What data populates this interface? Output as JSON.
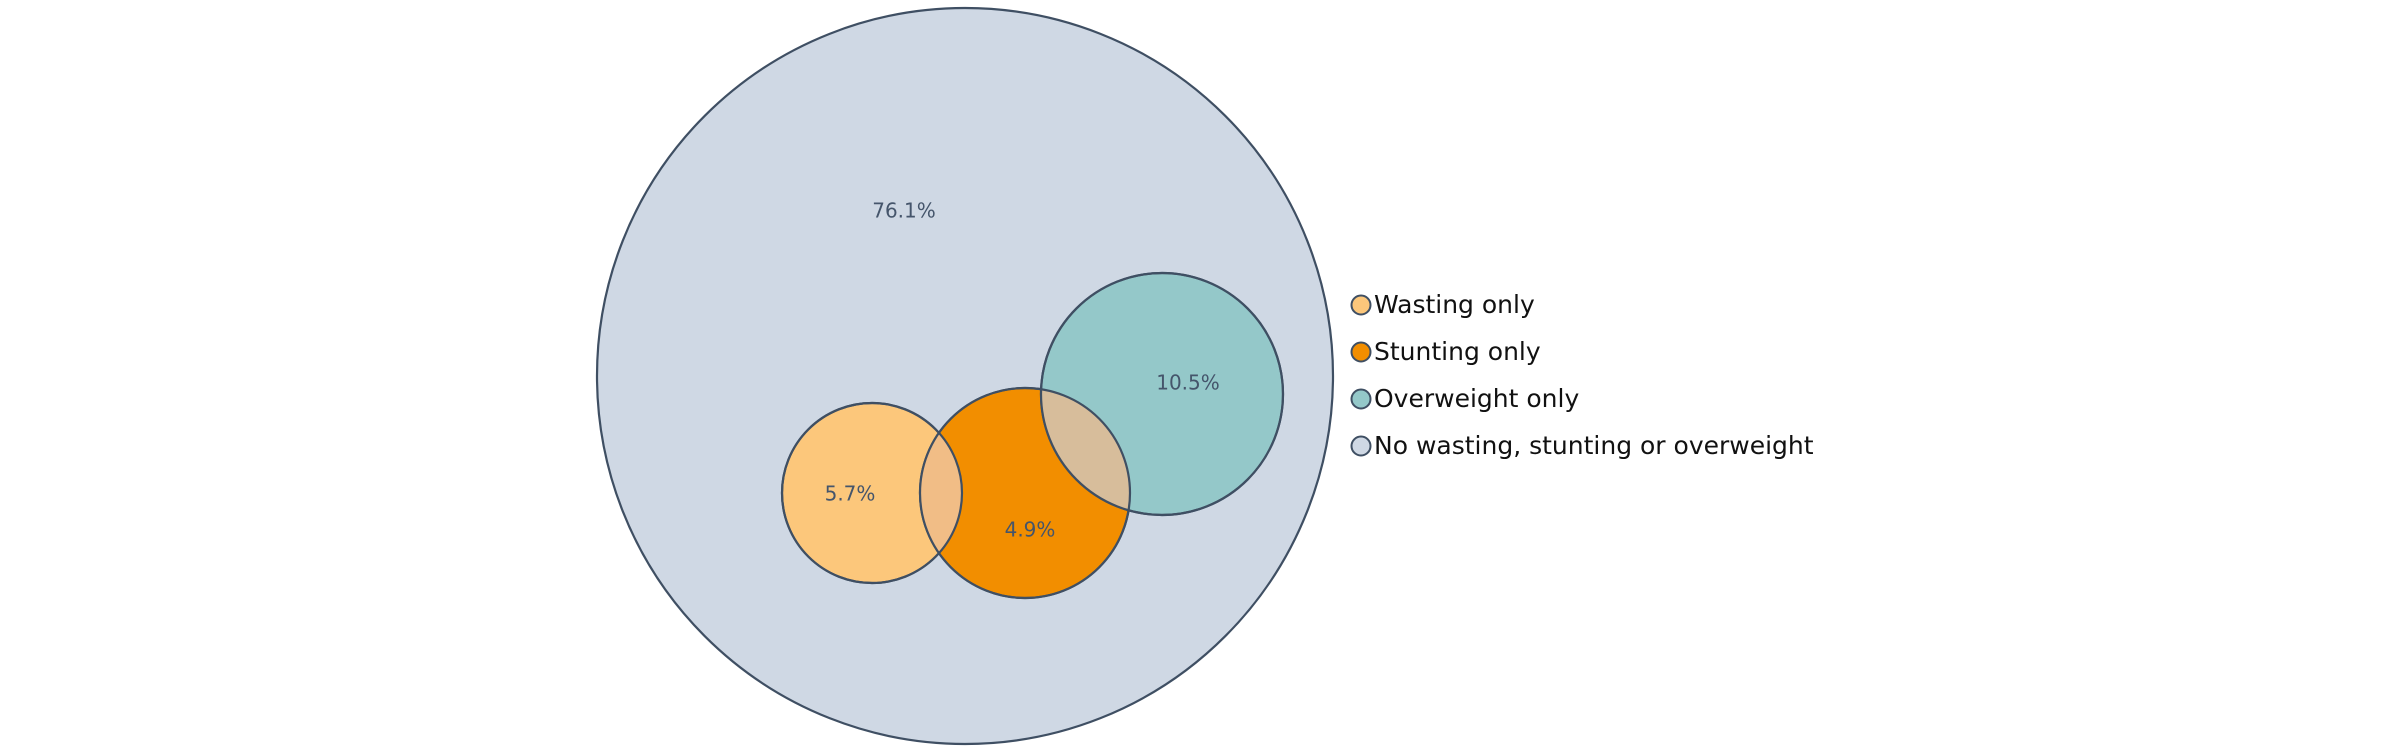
{
  "chart_data": {
    "type": "venn",
    "title": "",
    "sets": [
      {
        "key": "none",
        "name": "No wasting, stunting or overweight",
        "value": 76.1,
        "label": "76.1%",
        "color": "#cfd8e4"
      },
      {
        "key": "wasting",
        "name": "Wasting only",
        "value": 5.7,
        "label": "5.7%",
        "color": "#fcc77b"
      },
      {
        "key": "stunting",
        "name": "Stunting only",
        "value": 4.9,
        "label": "4.9%",
        "color": "#f28e00"
      },
      {
        "key": "overweight",
        "name": "Overweight only",
        "value": 10.5,
        "label": "10.5%",
        "color": "#94c8c9"
      }
    ],
    "overlaps": [
      {
        "sets": [
          "wasting",
          "stunting"
        ],
        "color": "#f1bd86"
      },
      {
        "sets": [
          "stunting",
          "overweight"
        ],
        "color": "#d7bd9b"
      }
    ],
    "legend": {
      "placement": "right",
      "entries": [
        {
          "label": "Wasting only",
          "color": "#fcc77b"
        },
        {
          "label": "Stunting only",
          "color": "#f28e00"
        },
        {
          "label": "Overweight only",
          "color": "#94c8c9"
        },
        {
          "label": "No wasting, stunting or overweight",
          "color": "#cfd8e4"
        }
      ]
    },
    "stroke_color": "#3f4f63"
  }
}
